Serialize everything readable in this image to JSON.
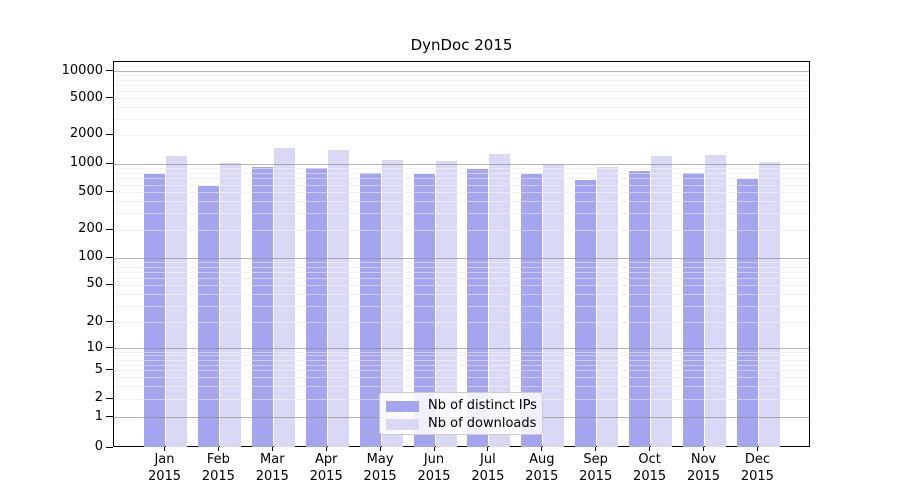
{
  "title": "DynDoc 2015",
  "legend": {
    "items": [
      {
        "label": "Nb of distinct IPs",
        "color": "#a4a4ef"
      },
      {
        "label": "Nb of downloads",
        "color": "#d9d9f6"
      }
    ]
  },
  "y_axis": {
    "tick_labels": [
      "10000",
      "5000",
      "2000",
      "1000",
      "500",
      "200",
      "100",
      "50",
      "20",
      "10",
      "5",
      "2",
      "1",
      "0"
    ],
    "tick_values": [
      10000,
      5000,
      2000,
      1000,
      500,
      200,
      100,
      50,
      20,
      10,
      5,
      2,
      1,
      0
    ]
  },
  "x_axis": {
    "months": [
      "Jan",
      "Feb",
      "Mar",
      "Apr",
      "May",
      "Jun",
      "Jul",
      "Aug",
      "Sep",
      "Oct",
      "Nov",
      "Dec"
    ],
    "year": "2015"
  },
  "chart_data": {
    "type": "bar",
    "title": "DynDoc 2015",
    "categories": [
      "Jan 2015",
      "Feb 2015",
      "Mar 2015",
      "Apr 2015",
      "May 2015",
      "Jun 2015",
      "Jul 2015",
      "Aug 2015",
      "Sep 2015",
      "Oct 2015",
      "Nov 2015",
      "Dec 2015"
    ],
    "series": [
      {
        "name": "Nb of distinct IPs",
        "color": "#a4a4ef",
        "values": [
          790,
          590,
          930,
          910,
          815,
          780,
          890,
          780,
          675,
          850,
          800,
          700
        ]
      },
      {
        "name": "Nb of downloads",
        "color": "#d9d9f6",
        "values": [
          1220,
          1015,
          1480,
          1390,
          1110,
          1085,
          1270,
          1010,
          930,
          1210,
          1230,
          1040
        ]
      }
    ],
    "yscale": "log",
    "ylim": [
      0,
      10000
    ],
    "y_ticks": [
      0,
      1,
      2,
      5,
      10,
      20,
      50,
      100,
      200,
      500,
      1000,
      2000,
      5000,
      10000
    ],
    "grid": true,
    "legend_position": "lower-center-inside"
  }
}
